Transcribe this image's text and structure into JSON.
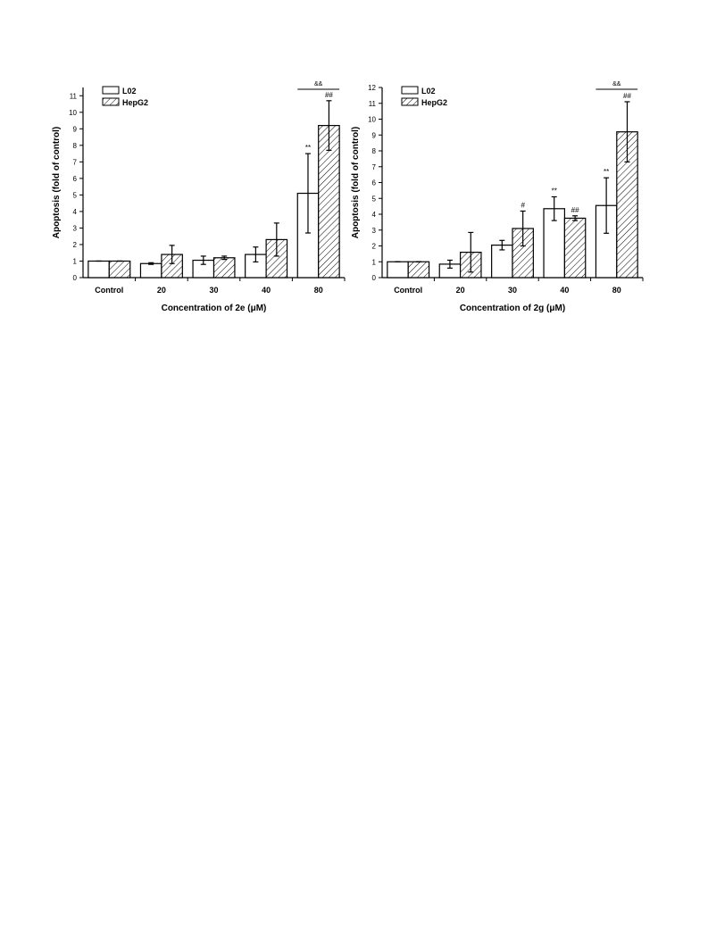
{
  "chart_data": [
    {
      "type": "bar",
      "xlabel": "Concentration of 2e (μM)",
      "ylabel": "Apoptosis (fold of control)",
      "categories": [
        "Control",
        "20",
        "30",
        "40",
        "80"
      ],
      "series": [
        {
          "name": "L02",
          "color": "#ffffff",
          "hatch": false,
          "values": [
            1,
            0.85,
            1.05,
            1.4,
            5.1
          ],
          "error": [
            0,
            0.05,
            0.25,
            0.45,
            2.4
          ]
        },
        {
          "name": "HepG2",
          "color": "#ffffff",
          "hatch": true,
          "values": [
            1,
            1.4,
            1.2,
            2.3,
            9.2
          ],
          "error": [
            0,
            0.55,
            0.1,
            1.0,
            1.5
          ]
        }
      ],
      "ylim": [
        0,
        11.5
      ],
      "yticks": [
        0,
        1,
        2,
        3,
        4,
        5,
        6,
        7,
        8,
        9,
        10,
        11
      ],
      "annotations": [
        {
          "text": "**",
          "category": "80",
          "series": "L02"
        },
        {
          "text": "##",
          "category": "80",
          "series": "HepG2"
        },
        {
          "text": "&&",
          "category": "80"
        }
      ]
    },
    {
      "type": "bar",
      "xlabel": "Concentration of 2g (μM)",
      "ylabel": "Apoptosis (fold of control)",
      "categories": [
        "Control",
        "20",
        "30",
        "40",
        "80"
      ],
      "series": [
        {
          "name": "L02",
          "color": "#ffffff",
          "hatch": false,
          "values": [
            1,
            0.85,
            2.05,
            4.35,
            4.55
          ],
          "error": [
            0,
            0.25,
            0.3,
            0.75,
            1.75
          ]
        },
        {
          "name": "HepG2",
          "color": "#ffffff",
          "hatch": true,
          "values": [
            1,
            1.6,
            3.1,
            3.75,
            9.2
          ],
          "error": [
            0,
            1.25,
            1.1,
            0.15,
            1.9
          ]
        }
      ],
      "ylim": [
        0,
        12
      ],
      "yticks": [
        0,
        1,
        2,
        3,
        4,
        5,
        6,
        7,
        8,
        9,
        10,
        11,
        12
      ],
      "annotations": [
        {
          "text": "#",
          "category": "30",
          "series": "HepG2"
        },
        {
          "text": "**",
          "category": "40",
          "series": "L02"
        },
        {
          "text": "##",
          "category": "40",
          "series": "HepG2"
        },
        {
          "text": "**",
          "category": "80",
          "series": "L02"
        },
        {
          "text": "##",
          "category": "80",
          "series": "HepG2"
        },
        {
          "text": "&&",
          "category": "80"
        }
      ]
    }
  ]
}
